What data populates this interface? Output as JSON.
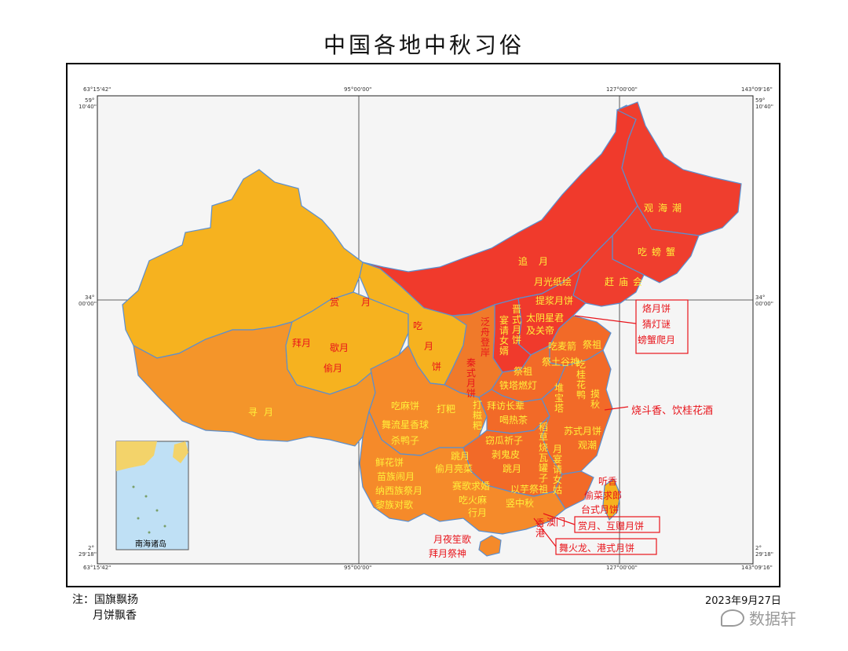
{
  "title": "中国各地中秋习俗",
  "coords": {
    "lon_left": "63°15'42\"",
    "lon_95": "95°00'00\"",
    "lon_127": "127°00'00\"",
    "lon_right": "143°09'16\"",
    "lat_top_a": "59°",
    "lat_top_b": "10'40\"",
    "lat_mid_a": "34°",
    "lat_mid_b": "00'00\"",
    "lat_bot_a": "2°",
    "lat_bot_b": "29'18\""
  },
  "inset_label": "南海诸岛",
  "regions": {
    "heilongjiang": "观海潮",
    "jilin": "吃螃蟹",
    "liaoning": "赶庙会",
    "neimenggu": "追月",
    "beijing_a": "月光纸绘",
    "beijing_b": "提浆月饼",
    "xinjiang": "赏月",
    "qinghai_a": "拜月",
    "qinghai_b": "歇月",
    "qinghai_c": "偷月",
    "gansu": [
      "吃",
      "月",
      "饼"
    ],
    "ningxia": [
      "泛",
      "舟",
      "登",
      "岸"
    ],
    "shaanxi": [
      "秦",
      "式",
      "月",
      "饼"
    ],
    "shanxi": [
      "晋",
      "式",
      "月",
      "饼"
    ],
    "shanxi_b": [
      "宴",
      "请",
      "女",
      "婿"
    ],
    "hebei": [
      "太阴星君",
      "及关帝"
    ],
    "shandong_a": "吃麦箭",
    "shandong_b": "祭祖",
    "shandong_c": "祭土谷神",
    "henan_a": "祭祖",
    "henan_b": "铁塔燃灯",
    "tibet": "寻月",
    "sichuan_a": "吃麻饼",
    "sichuan_b": "打粑",
    "sichuan_c": "舞流星香球",
    "sichuan_d": "杀鸭子",
    "chongqing": [
      "打",
      "糍",
      "粑"
    ],
    "hubei_a": "拜访长辈",
    "hubei_b": "喝热茶",
    "yunnan_a": "鲜花饼",
    "yunnan_b": "苗族闹月",
    "yunnan_c": "纳西族祭月",
    "yunnan_d": "黎族对歌",
    "guizhou_a": "跳月",
    "guizhou_b": "偷月亮菜",
    "hunan_a": "窃瓜祈子",
    "hunan_b": "剥鬼皮",
    "hunan_c": "跳月",
    "guangxi_a": "赛歌求婚",
    "guangxi_b": "吃火麻",
    "guangxi_c": "行月",
    "jiangxi_a": [
      "稻",
      "草",
      "烧",
      "瓦",
      "罐",
      "子"
    ],
    "jiangxi_b": "以芋祭祖",
    "guangdong": "竖中秋",
    "anhui": [
      "堆",
      "宝",
      "塔"
    ],
    "jiangsu_a": [
      "吃",
      "桂",
      "花",
      "鸭"
    ],
    "jiangsu_b": [
      "摸",
      "秋"
    ],
    "zhejiang_a": "苏式月饼",
    "zhejiang_b": "观潮",
    "fujian_a": [
      "月",
      "宴",
      "请",
      "女",
      "姑"
    ],
    "taiwan_a": "听香",
    "taiwan_b": "偷菜求郎",
    "taiwan_c": "台式月饼",
    "hongkong": [
      "香",
      "港"
    ],
    "macau": "澳门",
    "hainan_a": "月夜笙歌",
    "hainan_b": "拜月祭神"
  },
  "callouts": {
    "tianjin": [
      "烙月饼",
      "猜灯谜",
      "螃蟹爬月"
    ],
    "shanghai": "烧斗香、饮桂花酒",
    "macau": "赏月、互赠月饼",
    "hongkong": "舞火龙、港式月饼"
  },
  "colors": {
    "north": "#f03a2c",
    "northeast": "#ef3e2e",
    "mid_orange": "#f07a2a",
    "west_gold": "#f6b21f",
    "tibet": "#f4952a",
    "sw_orange": "#f58a2a",
    "east_orange": "#f26a28",
    "border": "#5a8fd0",
    "label_red": "#e8141b",
    "label_yellow": "#ffef3a"
  },
  "notes": [
    "注：国旗飘扬",
    "月饼飘香"
  ],
  "date": "2023年9月27日",
  "watermark": "数据轩"
}
